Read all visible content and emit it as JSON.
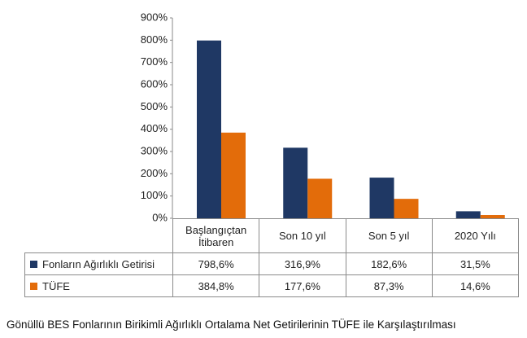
{
  "chart_data": {
    "type": "bar",
    "title": "Gönüllü BES Fonlarının Birikimli Ağırlıklı Ortalama Net Getirilerinin TÜFE ile Karşılaştırılması",
    "categories": [
      "Başlangıçtan İtibaren",
      "Son 10 yıl",
      "Son 5 yıl",
      "2020 Yılı"
    ],
    "series": [
      {
        "name": "Fonların Ağırlıklı Getirisi",
        "color": "#1f3864",
        "values": [
          798.6,
          316.9,
          182.6,
          31.5
        ],
        "value_labels": [
          "798,6%",
          "316,9%",
          "182,6%",
          "31,5%"
        ]
      },
      {
        "name": "TÜFE",
        "color": "#e36c0a",
        "values": [
          384.8,
          177.6,
          87.3,
          14.6
        ],
        "value_labels": [
          "384,8%",
          "177,6%",
          "87,3%",
          "14,6%"
        ]
      }
    ],
    "ylim": [
      0,
      900
    ],
    "yticks": [
      {
        "value": 0,
        "label": "0%"
      },
      {
        "value": 100,
        "label": "100%"
      },
      {
        "value": 200,
        "label": "200%"
      },
      {
        "value": 300,
        "label": "300%"
      },
      {
        "value": 400,
        "label": "400%"
      },
      {
        "value": 500,
        "label": "500%"
      },
      {
        "value": 600,
        "label": "600%"
      },
      {
        "value": 700,
        "label": "700%"
      },
      {
        "value": 800,
        "label": "800%"
      },
      {
        "value": 900,
        "label": "900%"
      }
    ]
  }
}
